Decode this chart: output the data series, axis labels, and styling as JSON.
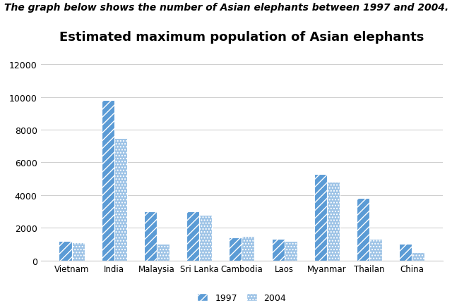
{
  "title": "Estimated maximum population of Asian elephants",
  "suptitle": "The graph below shows the number of Asian elephants between 1997 and 2004.",
  "categories": [
    "Vietnam",
    "India",
    "Malaysia",
    "Sri Lanka",
    "Cambodia",
    "Laos",
    "Myanmar",
    "Thailan",
    "China"
  ],
  "values_1997": [
    1200,
    9800,
    3000,
    3000,
    1400,
    1300,
    5300,
    3800,
    1000
  ],
  "values_2004": [
    1100,
    7500,
    1000,
    2800,
    1500,
    1200,
    4800,
    1300,
    500
  ],
  "color_1997": "#5B9BD5",
  "color_2004": "#9DC3E6",
  "hatch_1997": "///",
  "hatch_2004": "....",
  "ylim": [
    0,
    13000
  ],
  "yticks": [
    0,
    2000,
    4000,
    6000,
    8000,
    10000,
    12000
  ],
  "legend_labels": [
    "1997",
    "2004"
  ],
  "background_color": "#ffffff",
  "chart_bg": "#ffffff",
  "grid_color": "#d0d0d0",
  "title_fontsize": 13,
  "suptitle_fontsize": 10,
  "bar_width": 0.3
}
